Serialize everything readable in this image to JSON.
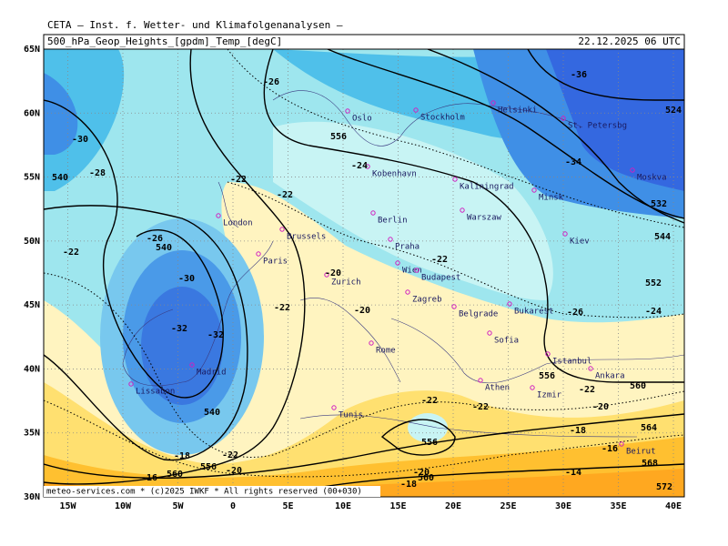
{
  "header": {
    "title": "CETA — Inst. f. Wetter- und Klimafolgenanalysen —",
    "subtitle": "500_hPa_Geop_Heights_[gpdm]_Temp_[degC]",
    "date": "22.12.2025 06 UTC"
  },
  "axes": {
    "lat": [
      {
        "value": 65,
        "label": "65N"
      },
      {
        "value": 60,
        "label": "60N"
      },
      {
        "value": 55,
        "label": "55N"
      },
      {
        "value": 50,
        "label": "50N"
      },
      {
        "value": 45,
        "label": "45N"
      },
      {
        "value": 40,
        "label": "40N"
      },
      {
        "value": 35,
        "label": "35N"
      },
      {
        "value": 30,
        "label": "30N"
      }
    ],
    "lon": [
      {
        "value": -15,
        "label": "15W"
      },
      {
        "value": -10,
        "label": "10W"
      },
      {
        "value": -5,
        "label": "5W"
      },
      {
        "value": 0,
        "label": "0"
      },
      {
        "value": 5,
        "label": "5E"
      },
      {
        "value": 10,
        "label": "10E"
      },
      {
        "value": 15,
        "label": "15E"
      },
      {
        "value": 20,
        "label": "20E"
      },
      {
        "value": 25,
        "label": "25E"
      },
      {
        "value": 30,
        "label": "30E"
      },
      {
        "value": 35,
        "label": "35E"
      },
      {
        "value": 40,
        "label": "40E"
      }
    ]
  },
  "cities": [
    "Oslo",
    "Stockholm",
    "Helsinki",
    "St. Petersbg",
    "Kobenhavn",
    "Kaliningrad",
    "Minsk",
    "Moskva",
    "London",
    "Berlin",
    "Warszaw",
    "Kiev",
    "Brussels",
    "Praha",
    "Paris",
    "Wien",
    "Budapest",
    "Zurich",
    "Zagreb",
    "Belgrade",
    "Bukarest",
    "Sofia",
    "Istanbul",
    "Ankara",
    "Rome",
    "Madrid",
    "Lissabon",
    "Athen",
    "Izmir",
    "Tunis",
    "Beirut"
  ],
  "contour_labels": [
    -26,
    556,
    -24,
    -22,
    -22,
    -30,
    -28,
    540,
    -26,
    540,
    -22,
    -30,
    -22,
    -32,
    -32,
    540,
    -20,
    -20,
    -22,
    -26,
    -24,
    552,
    544,
    532,
    -34,
    -36,
    524,
    560,
    564,
    568,
    572,
    -20,
    -22,
    -18,
    -16,
    -14,
    556,
    556,
    -22,
    -22,
    -20,
    -18,
    560,
    560,
    556,
    -16,
    -18,
    -20,
    -22
  ],
  "footer": "meteo-services.com * (c)2025 IWKF * All rights reserved (00+030)"
}
